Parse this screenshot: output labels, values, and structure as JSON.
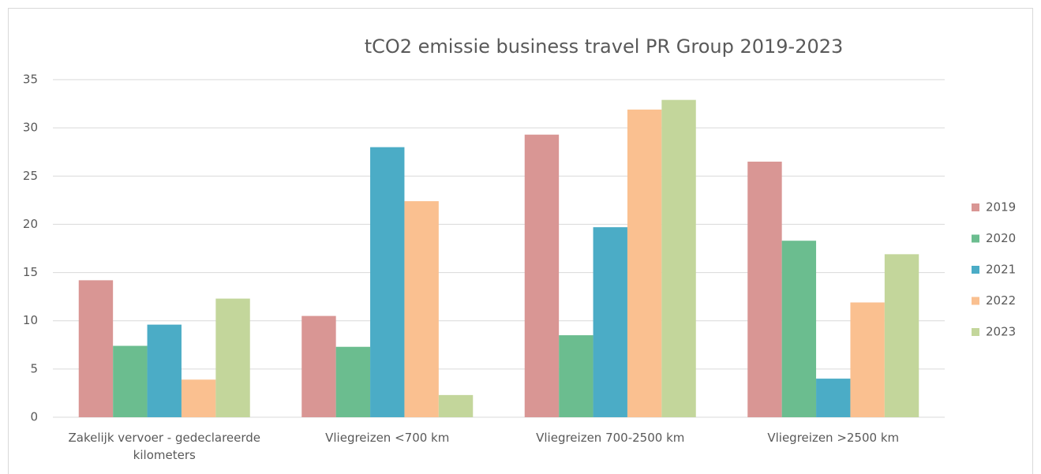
{
  "chart_data": {
    "type": "bar",
    "title": "tCO2 emissie business travel PR Group 2019-2023",
    "categories": [
      "Zakelijk vervoer - gedeclareerde kilometers",
      "Vliegreizen <700 km",
      "Vliegreizen 700-2500 km",
      "Vliegreizen >2500 km"
    ],
    "series": [
      {
        "name": "2019",
        "color": "#d99694",
        "values": [
          14.2,
          10.5,
          29.3,
          26.5
        ]
      },
      {
        "name": "2020",
        "color": "#6bbd8f",
        "values": [
          7.4,
          7.3,
          8.5,
          18.3
        ]
      },
      {
        "name": "2021",
        "color": "#4bacc6",
        "values": [
          9.6,
          28.0,
          19.7,
          4.0
        ]
      },
      {
        "name": "2022",
        "color": "#fac090",
        "values": [
          3.9,
          22.4,
          31.9,
          11.9
        ]
      },
      {
        "name": "2023",
        "color": "#c3d69b",
        "values": [
          12.3,
          2.3,
          32.9,
          16.9
        ]
      }
    ],
    "ylim": [
      0,
      35
    ],
    "yticks": [
      0,
      5,
      10,
      15,
      20,
      25,
      30,
      35
    ],
    "grid": true,
    "legend": "right"
  }
}
